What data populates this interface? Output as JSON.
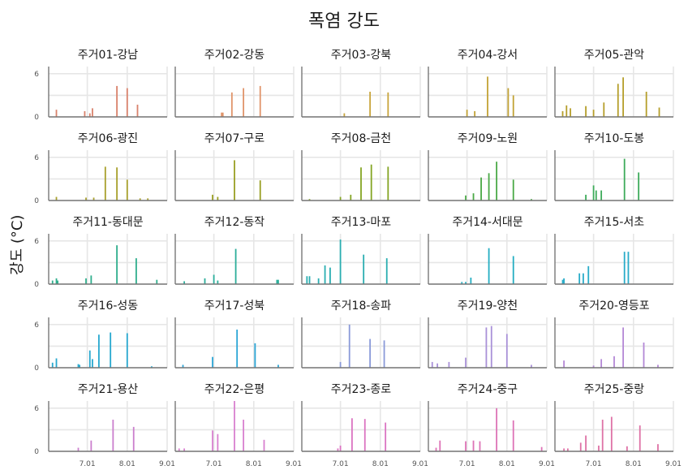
{
  "chart_data": {
    "type": "bar",
    "title": "폭염 강도",
    "ylabel": "강도 (°C)",
    "xlabel": "",
    "x_domain": [
      "2023-06-01",
      "2023-09-01"
    ],
    "x_ticks": [
      {
        "date": "2023-07-01",
        "label": "7.01"
      },
      {
        "date": "2023-08-01",
        "label": "8.01"
      },
      {
        "date": "2023-09-01",
        "label": "9.01"
      }
    ],
    "ylim": [
      0,
      7
    ],
    "y_ticks": [
      0,
      6
    ],
    "grid": true,
    "facets": [
      {
        "title": "주거01-강남",
        "color": "#d9826c",
        "bars": [
          [
            "2023-06-07",
            1.0
          ],
          [
            "2023-06-29",
            0.8
          ],
          [
            "2023-07-03",
            0.5
          ],
          [
            "2023-07-05",
            1.2
          ],
          [
            "2023-07-24",
            4.3
          ],
          [
            "2023-08-01",
            4.0
          ],
          [
            "2023-08-09",
            1.7
          ]
        ]
      },
      {
        "title": "주거02-강동",
        "color": "#e0946a",
        "bars": [
          [
            "2023-07-07",
            0.6
          ],
          [
            "2023-07-08",
            0.6
          ],
          [
            "2023-07-15",
            3.4
          ],
          [
            "2023-07-24",
            4.0
          ],
          [
            "2023-08-06",
            4.3
          ]
        ]
      },
      {
        "title": "주거03-강북",
        "color": "#c9a53c",
        "bars": [
          [
            "2023-07-04",
            0.5
          ],
          [
            "2023-07-24",
            3.5
          ],
          [
            "2023-08-07",
            3.4
          ]
        ]
      },
      {
        "title": "주거04-강서",
        "color": "#c2a235",
        "bars": [
          [
            "2023-07-01",
            1.0
          ],
          [
            "2023-07-07",
            0.8
          ],
          [
            "2023-07-17",
            5.6
          ],
          [
            "2023-08-02",
            4.0
          ],
          [
            "2023-08-06",
            3.0
          ]
        ]
      },
      {
        "title": "주거05-관악",
        "color": "#b59e2a",
        "bars": [
          [
            "2023-06-07",
            0.8
          ],
          [
            "2023-06-10",
            1.6
          ],
          [
            "2023-06-13",
            1.2
          ],
          [
            "2023-06-25",
            1.5
          ],
          [
            "2023-07-01",
            1.0
          ],
          [
            "2023-07-09",
            2.0
          ],
          [
            "2023-07-20",
            4.6
          ],
          [
            "2023-07-24",
            5.5
          ],
          [
            "2023-08-11",
            3.5
          ],
          [
            "2023-08-21",
            1.3
          ]
        ]
      },
      {
        "title": "주거06-광진",
        "color": "#a8a02c",
        "bars": [
          [
            "2023-06-07",
            0.5
          ],
          [
            "2023-06-30",
            0.4
          ],
          [
            "2023-07-06",
            0.4
          ],
          [
            "2023-07-15",
            4.7
          ],
          [
            "2023-07-24",
            4.6
          ],
          [
            "2023-08-01",
            2.9
          ],
          [
            "2023-08-11",
            0.3
          ],
          [
            "2023-08-17",
            0.3
          ]
        ]
      },
      {
        "title": "주거07-구로",
        "color": "#999e22",
        "bars": [
          [
            "2023-06-30",
            0.8
          ],
          [
            "2023-07-04",
            0.5
          ],
          [
            "2023-07-17",
            5.6
          ],
          [
            "2023-08-06",
            2.8
          ]
        ]
      },
      {
        "title": "주거08-금천",
        "color": "#84a524",
        "bars": [
          [
            "2023-06-07",
            0.2
          ],
          [
            "2023-07-01",
            0.5
          ],
          [
            "2023-07-09",
            0.8
          ],
          [
            "2023-07-17",
            4.6
          ],
          [
            "2023-07-25",
            5.0
          ],
          [
            "2023-08-07",
            4.7
          ]
        ]
      },
      {
        "title": "주거09-노원",
        "color": "#4aa946",
        "bars": [
          [
            "2023-06-30",
            0.7
          ],
          [
            "2023-07-06",
            1.0
          ],
          [
            "2023-07-12",
            3.2
          ],
          [
            "2023-07-18",
            3.8
          ],
          [
            "2023-07-24",
            5.4
          ],
          [
            "2023-08-06",
            2.9
          ],
          [
            "2023-08-20",
            0.2
          ]
        ]
      },
      {
        "title": "주거10-도봉",
        "color": "#3dab5a",
        "bars": [
          [
            "2023-06-25",
            0.8
          ],
          [
            "2023-07-01",
            2.1
          ],
          [
            "2023-07-03",
            1.4
          ],
          [
            "2023-07-07",
            1.4
          ],
          [
            "2023-07-25",
            5.8
          ],
          [
            "2023-08-05",
            3.9
          ]
        ]
      },
      {
        "title": "주거11-동대문",
        "color": "#2fae8c",
        "bars": [
          [
            "2023-06-04",
            0.5
          ],
          [
            "2023-06-07",
            0.8
          ],
          [
            "2023-06-08",
            0.5
          ],
          [
            "2023-06-30",
            0.8
          ],
          [
            "2023-07-04",
            1.2
          ],
          [
            "2023-07-24",
            5.4
          ],
          [
            "2023-08-08",
            3.6
          ],
          [
            "2023-08-24",
            0.6
          ]
        ]
      },
      {
        "title": "주거12-동작",
        "color": "#2cae9a",
        "bars": [
          [
            "2023-06-08",
            0.4
          ],
          [
            "2023-06-24",
            0.8
          ],
          [
            "2023-07-01",
            1.3
          ],
          [
            "2023-07-04",
            0.5
          ],
          [
            "2023-07-18",
            4.9
          ],
          [
            "2023-08-19",
            0.6
          ],
          [
            "2023-08-20",
            0.6
          ]
        ]
      },
      {
        "title": "주거13-마포",
        "color": "#2aaeb1",
        "bars": [
          [
            "2023-06-05",
            1.1
          ],
          [
            "2023-06-07",
            1.1
          ],
          [
            "2023-06-14",
            0.8
          ],
          [
            "2023-06-19",
            2.6
          ],
          [
            "2023-06-23",
            2.3
          ],
          [
            "2023-07-01",
            6.2
          ],
          [
            "2023-07-19",
            4.1
          ],
          [
            "2023-08-06",
            3.6
          ]
        ]
      },
      {
        "title": "주거14-서대문",
        "color": "#25aec2",
        "bars": [
          [
            "2023-06-27",
            0.3
          ],
          [
            "2023-06-30",
            0.3
          ],
          [
            "2023-07-04",
            0.9
          ],
          [
            "2023-07-18",
            5.0
          ],
          [
            "2023-08-06",
            3.9
          ]
        ]
      },
      {
        "title": "주거15-서초",
        "color": "#29acc9",
        "bars": [
          [
            "2023-06-07",
            0.6
          ],
          [
            "2023-06-08",
            0.8
          ],
          [
            "2023-06-20",
            1.5
          ],
          [
            "2023-06-23",
            1.5
          ],
          [
            "2023-06-27",
            2.5
          ],
          [
            "2023-07-25",
            4.5
          ],
          [
            "2023-07-28",
            4.5
          ]
        ]
      },
      {
        "title": "주거16-성동",
        "color": "#27a8cf",
        "bars": [
          [
            "2023-06-04",
            0.7
          ],
          [
            "2023-06-07",
            1.3
          ],
          [
            "2023-06-24",
            0.5
          ],
          [
            "2023-06-25",
            0.4
          ],
          [
            "2023-07-03",
            2.4
          ],
          [
            "2023-07-05",
            1.2
          ],
          [
            "2023-07-10",
            4.6
          ],
          [
            "2023-07-19",
            4.9
          ],
          [
            "2023-08-01",
            4.8
          ],
          [
            "2023-08-20",
            0.2
          ]
        ]
      },
      {
        "title": "주거17-성북",
        "color": "#2aa5d6",
        "bars": [
          [
            "2023-06-07",
            0.4
          ],
          [
            "2023-06-30",
            1.5
          ],
          [
            "2023-07-19",
            5.3
          ],
          [
            "2023-08-02",
            3.4
          ],
          [
            "2023-08-20",
            0.4
          ]
        ]
      },
      {
        "title": "주거18-송파",
        "color": "#8a9ad9",
        "bars": [
          [
            "2023-07-01",
            0.8
          ],
          [
            "2023-07-08",
            6.0
          ],
          [
            "2023-07-24",
            4.0
          ],
          [
            "2023-08-04",
            3.8
          ]
        ]
      },
      {
        "title": "주거19-양천",
        "color": "#a991d8",
        "bars": [
          [
            "2023-06-04",
            0.8
          ],
          [
            "2023-06-08",
            0.6
          ],
          [
            "2023-06-17",
            0.8
          ],
          [
            "2023-06-30",
            1.4
          ],
          [
            "2023-07-16",
            5.6
          ],
          [
            "2023-07-20",
            5.8
          ],
          [
            "2023-08-01",
            4.7
          ],
          [
            "2023-08-20",
            0.4
          ]
        ]
      },
      {
        "title": "주거20-영등포",
        "color": "#b488d6",
        "bars": [
          [
            "2023-06-08",
            1.0
          ],
          [
            "2023-07-01",
            0.3
          ],
          [
            "2023-07-07",
            1.2
          ],
          [
            "2023-07-17",
            1.6
          ],
          [
            "2023-07-24",
            5.6
          ],
          [
            "2023-08-09",
            3.5
          ],
          [
            "2023-08-20",
            0.4
          ]
        ]
      },
      {
        "title": "주거21-용산",
        "color": "#cb7fcd",
        "bars": [
          [
            "2023-06-24",
            0.5
          ],
          [
            "2023-07-04",
            1.5
          ],
          [
            "2023-07-21",
            4.4
          ],
          [
            "2023-08-06",
            3.4
          ]
        ]
      },
      {
        "title": "주거22-은평",
        "color": "#d880cf",
        "bars": [
          [
            "2023-06-04",
            0.4
          ],
          [
            "2023-06-08",
            0.4
          ],
          [
            "2023-06-30",
            2.9
          ],
          [
            "2023-07-04",
            2.4
          ],
          [
            "2023-07-17",
            7.0
          ],
          [
            "2023-07-24",
            4.4
          ],
          [
            "2023-08-09",
            1.6
          ]
        ]
      },
      {
        "title": "주거23-종로",
        "color": "#db74c2",
        "bars": [
          [
            "2023-06-29",
            0.4
          ],
          [
            "2023-07-01",
            0.8
          ],
          [
            "2023-07-10",
            4.6
          ],
          [
            "2023-07-20",
            4.5
          ],
          [
            "2023-08-05",
            4.0
          ]
        ]
      },
      {
        "title": "주거24-중구",
        "color": "#dd73b6",
        "bars": [
          [
            "2023-06-07",
            0.5
          ],
          [
            "2023-06-10",
            1.5
          ],
          [
            "2023-06-30",
            1.4
          ],
          [
            "2023-07-06",
            1.5
          ],
          [
            "2023-07-11",
            1.4
          ],
          [
            "2023-07-24",
            6.0
          ],
          [
            "2023-08-06",
            4.3
          ],
          [
            "2023-08-28",
            0.6
          ]
        ]
      },
      {
        "title": "주거25-중랑",
        "color": "#de72a6",
        "bars": [
          [
            "2023-06-08",
            0.4
          ],
          [
            "2023-06-11",
            0.4
          ],
          [
            "2023-06-21",
            1.2
          ],
          [
            "2023-06-25",
            2.2
          ],
          [
            "2023-07-05",
            0.8
          ],
          [
            "2023-07-08",
            4.4
          ],
          [
            "2023-07-15",
            4.8
          ],
          [
            "2023-07-27",
            0.7
          ],
          [
            "2023-08-06",
            3.6
          ],
          [
            "2023-08-20",
            1.0
          ]
        ]
      }
    ]
  }
}
